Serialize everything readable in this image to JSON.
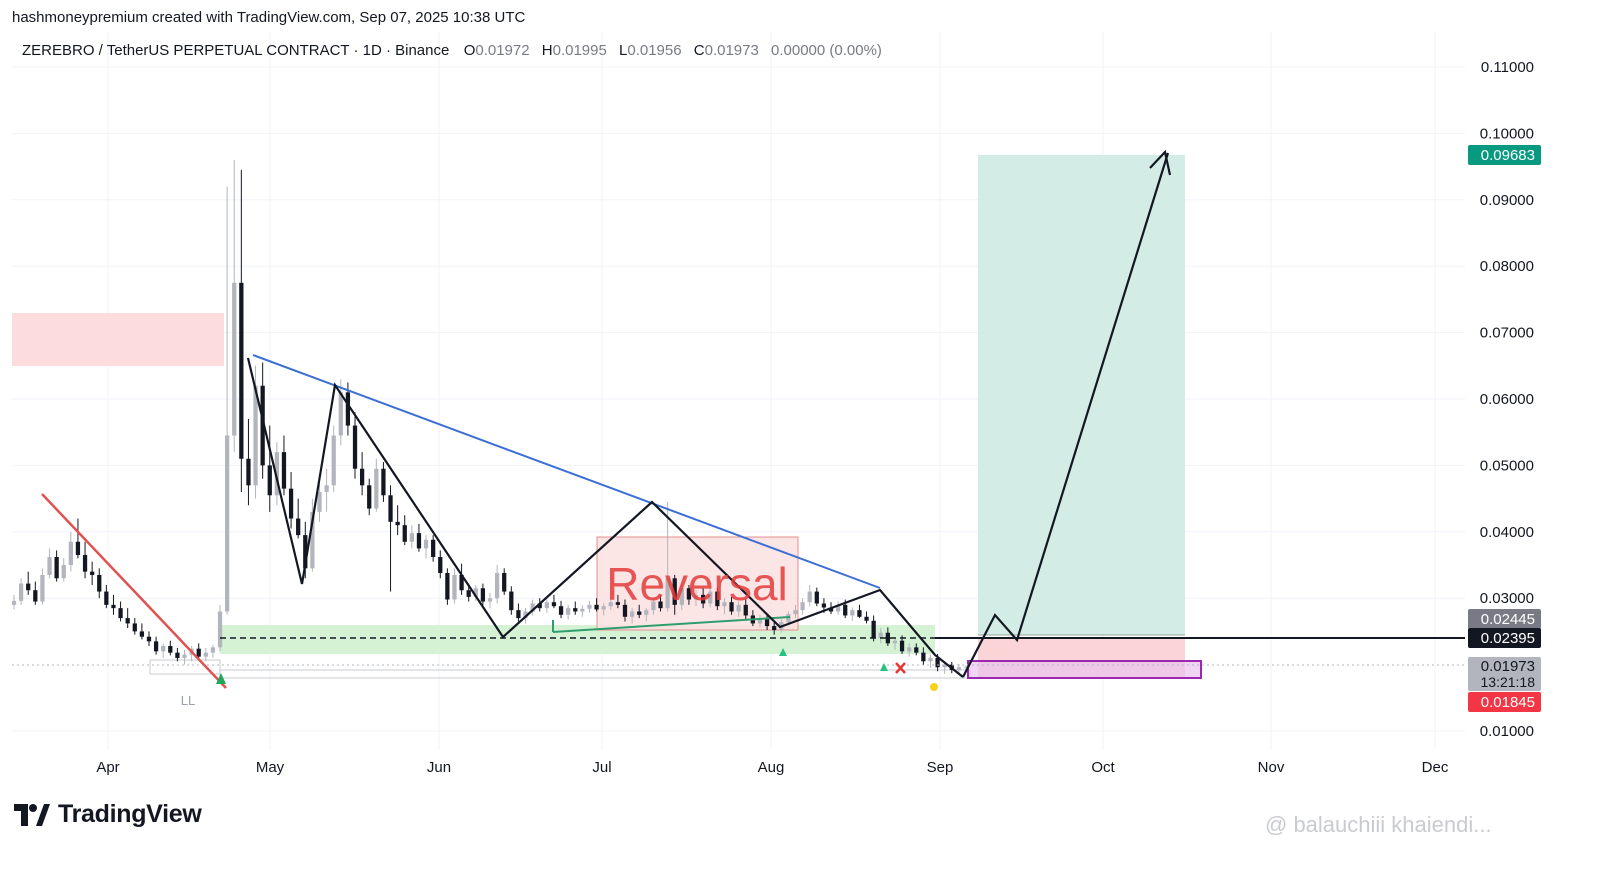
{
  "header": {
    "created_line": "hashmoneypremium created with TradingView.com, Sep 07, 2025 10:38 UTC",
    "symbol": "ZEREBRO / TetherUS PERPETUAL CONTRACT · 1D · Binance",
    "o_label": "O",
    "o_value": "0.01972",
    "h_label": "H",
    "h_value": "0.01995",
    "l_label": "L",
    "l_value": "0.01956",
    "c_label": "C",
    "c_value": "0.01973",
    "change": "0.00000 (0.00%)"
  },
  "branding": {
    "logo_text": "TradingView",
    "watermark": "@ balauchiii khaiendi..."
  },
  "colors": {
    "up": "#b2b5be",
    "down": "#131722",
    "blue_line": "#3b6fd4",
    "red_line": "#e05252",
    "target_zone": "#d3ede6",
    "stop_zone": "#fad4d6",
    "supply_zone": "#fcdcdc",
    "demand_zone": "#d6f2d4",
    "purple_box": "#9c27b0",
    "target_badge": "#089981",
    "red_badge": "#f23645"
  },
  "chart_data": {
    "type": "candlestick",
    "timeframe": "1D",
    "x_labels": [
      "Apr",
      "May",
      "Jun",
      "Jul",
      "Aug",
      "Sep",
      "Oct",
      "Nov",
      "Dec"
    ],
    "y_ticks": [
      "0.11000",
      "0.10000",
      "0.09000",
      "0.08000",
      "0.07000",
      "0.06000",
      "0.05000",
      "0.04000",
      "0.03000",
      "0.01000"
    ],
    "ylim": [
      0.006,
      0.116
    ],
    "price_badges": [
      {
        "label": "0.09683",
        "value": 0.09683,
        "kind": "target"
      },
      {
        "label": "0.02445",
        "value": 0.02445,
        "kind": "entry"
      },
      {
        "label": "0.02395",
        "value": 0.02395,
        "kind": "level"
      },
      {
        "label": "0.01973",
        "value": 0.01973,
        "kind": "last",
        "sub": "13:21:18"
      },
      {
        "label": "0.01845",
        "value": 0.01845,
        "kind": "stop"
      }
    ],
    "annotations": [
      {
        "text": "Reversal",
        "kind": "box-label"
      },
      {
        "text": "LL",
        "kind": "marker"
      }
    ],
    "candles_ohlc": [
      [
        0.029,
        0.0305,
        0.0283,
        0.0296
      ],
      [
        0.0296,
        0.033,
        0.029,
        0.0322
      ],
      [
        0.0322,
        0.034,
        0.0305,
        0.0312
      ],
      [
        0.0312,
        0.0325,
        0.029,
        0.0295
      ],
      [
        0.0295,
        0.0345,
        0.029,
        0.0335
      ],
      [
        0.0335,
        0.0375,
        0.033,
        0.0362
      ],
      [
        0.0362,
        0.0372,
        0.0325,
        0.033
      ],
      [
        0.033,
        0.036,
        0.0325,
        0.035
      ],
      [
        0.035,
        0.04,
        0.034,
        0.0385
      ],
      [
        0.0385,
        0.042,
        0.036,
        0.0365
      ],
      [
        0.0365,
        0.0385,
        0.033,
        0.034
      ],
      [
        0.034,
        0.0355,
        0.032,
        0.0335
      ],
      [
        0.0335,
        0.0345,
        0.03,
        0.031
      ],
      [
        0.031,
        0.032,
        0.0285,
        0.029
      ],
      [
        0.029,
        0.0305,
        0.0275,
        0.0285
      ],
      [
        0.0285,
        0.0295,
        0.0265,
        0.027
      ],
      [
        0.027,
        0.0285,
        0.0255,
        0.0262
      ],
      [
        0.0262,
        0.027,
        0.0245,
        0.025
      ],
      [
        0.025,
        0.0262,
        0.0238,
        0.0242
      ],
      [
        0.0242,
        0.025,
        0.0228,
        0.0235
      ],
      [
        0.0235,
        0.0242,
        0.0215,
        0.022
      ],
      [
        0.022,
        0.0232,
        0.021,
        0.0228
      ],
      [
        0.0228,
        0.0236,
        0.0214,
        0.0218
      ],
      [
        0.0218,
        0.0225,
        0.0205,
        0.021
      ],
      [
        0.021,
        0.0222,
        0.02,
        0.0215
      ],
      [
        0.0215,
        0.0228,
        0.0205,
        0.0224
      ],
      [
        0.0224,
        0.0232,
        0.021,
        0.0212
      ],
      [
        0.0212,
        0.0225,
        0.0205,
        0.0218
      ],
      [
        0.0218,
        0.023,
        0.021,
        0.0226
      ],
      [
        0.0226,
        0.029,
        0.022,
        0.028
      ],
      [
        0.028,
        0.092,
        0.0275,
        0.0545
      ],
      [
        0.0545,
        0.096,
        0.052,
        0.0775
      ],
      [
        0.0775,
        0.0945,
        0.046,
        0.051
      ],
      [
        0.051,
        0.057,
        0.044,
        0.047
      ],
      [
        0.047,
        0.065,
        0.045,
        0.062
      ],
      [
        0.062,
        0.0655,
        0.048,
        0.05
      ],
      [
        0.05,
        0.056,
        0.043,
        0.0455
      ],
      [
        0.0455,
        0.0535,
        0.044,
        0.052
      ],
      [
        0.052,
        0.0545,
        0.0455,
        0.0465
      ],
      [
        0.0465,
        0.049,
        0.0405,
        0.042
      ],
      [
        0.042,
        0.045,
        0.039,
        0.0395
      ],
      [
        0.0395,
        0.0415,
        0.033,
        0.0345
      ],
      [
        0.0345,
        0.045,
        0.034,
        0.043
      ],
      [
        0.043,
        0.048,
        0.0415,
        0.046
      ],
      [
        0.046,
        0.0495,
        0.043,
        0.047
      ],
      [
        0.047,
        0.056,
        0.046,
        0.0545
      ],
      [
        0.0545,
        0.063,
        0.053,
        0.061
      ],
      [
        0.061,
        0.0625,
        0.0545,
        0.056
      ],
      [
        0.056,
        0.058,
        0.048,
        0.0495
      ],
      [
        0.0495,
        0.052,
        0.0455,
        0.047
      ],
      [
        0.047,
        0.048,
        0.0425,
        0.0435
      ],
      [
        0.0435,
        0.051,
        0.043,
        0.0495
      ],
      [
        0.0495,
        0.0505,
        0.0445,
        0.0455
      ],
      [
        0.0455,
        0.047,
        0.031,
        0.0415
      ],
      [
        0.0415,
        0.044,
        0.0395,
        0.041
      ],
      [
        0.041,
        0.0425,
        0.038,
        0.0385
      ],
      [
        0.0385,
        0.041,
        0.0375,
        0.0398
      ],
      [
        0.0398,
        0.0412,
        0.037,
        0.0375
      ],
      [
        0.0375,
        0.0395,
        0.036,
        0.0388
      ],
      [
        0.0388,
        0.0395,
        0.0355,
        0.0362
      ],
      [
        0.0362,
        0.0372,
        0.033,
        0.0338
      ],
      [
        0.0338,
        0.0345,
        0.029,
        0.0298
      ],
      [
        0.0298,
        0.0345,
        0.0292,
        0.0335
      ],
      [
        0.0335,
        0.0352,
        0.0305,
        0.0312
      ],
      [
        0.0312,
        0.0322,
        0.0295,
        0.0302
      ],
      [
        0.0302,
        0.032,
        0.0296,
        0.0315
      ],
      [
        0.0315,
        0.0322,
        0.029,
        0.0295
      ],
      [
        0.0295,
        0.0308,
        0.0285,
        0.03
      ],
      [
        0.03,
        0.035,
        0.0292,
        0.0338
      ],
      [
        0.0338,
        0.0345,
        0.0305,
        0.031
      ],
      [
        0.031,
        0.0318,
        0.0275,
        0.0282
      ],
      [
        0.0282,
        0.0292,
        0.0265,
        0.027
      ],
      [
        0.027,
        0.0285,
        0.0262,
        0.028
      ],
      [
        0.028,
        0.0298,
        0.0274,
        0.0292
      ],
      [
        0.0292,
        0.03,
        0.028,
        0.0285
      ],
      [
        0.0285,
        0.0298,
        0.0278,
        0.0294
      ],
      [
        0.0294,
        0.0305,
        0.0285,
        0.0288
      ],
      [
        0.0288,
        0.0296,
        0.027,
        0.0275
      ],
      [
        0.0275,
        0.029,
        0.0268,
        0.0285
      ],
      [
        0.0285,
        0.0295,
        0.0275,
        0.028
      ],
      [
        0.028,
        0.029,
        0.0272,
        0.0284
      ],
      [
        0.0284,
        0.0296,
        0.0278,
        0.029
      ],
      [
        0.029,
        0.03,
        0.028,
        0.0283
      ],
      [
        0.0283,
        0.0292,
        0.0274,
        0.0288
      ],
      [
        0.0288,
        0.0298,
        0.0282,
        0.0294
      ],
      [
        0.0294,
        0.0305,
        0.0285,
        0.029
      ],
      [
        0.029,
        0.0298,
        0.0265,
        0.0272
      ],
      [
        0.0272,
        0.0285,
        0.0262,
        0.028
      ],
      [
        0.028,
        0.029,
        0.027,
        0.0275
      ],
      [
        0.0275,
        0.0285,
        0.0265,
        0.0282
      ],
      [
        0.0282,
        0.03,
        0.0275,
        0.0295
      ],
      [
        0.0295,
        0.0305,
        0.028,
        0.0285
      ],
      [
        0.0285,
        0.0445,
        0.028,
        0.033
      ],
      [
        0.033,
        0.0335,
        0.0275,
        0.029
      ],
      [
        0.029,
        0.0322,
        0.0282,
        0.0315
      ],
      [
        0.0315,
        0.032,
        0.029,
        0.0298
      ],
      [
        0.0298,
        0.0312,
        0.0288,
        0.0305
      ],
      [
        0.0305,
        0.0315,
        0.0285,
        0.0292
      ],
      [
        0.0292,
        0.0318,
        0.0286,
        0.031
      ],
      [
        0.031,
        0.0316,
        0.0282,
        0.0288
      ],
      [
        0.0288,
        0.03,
        0.0276,
        0.0294
      ],
      [
        0.0294,
        0.0302,
        0.0275,
        0.028
      ],
      [
        0.028,
        0.0295,
        0.0272,
        0.029
      ],
      [
        0.029,
        0.0298,
        0.0268,
        0.0274
      ],
      [
        0.0274,
        0.0282,
        0.0258,
        0.0262
      ],
      [
        0.0262,
        0.0275,
        0.0256,
        0.027
      ],
      [
        0.027,
        0.0276,
        0.0252,
        0.0258
      ],
      [
        0.0258,
        0.0265,
        0.0245,
        0.0252
      ],
      [
        0.0252,
        0.0268,
        0.0248,
        0.0264
      ],
      [
        0.0264,
        0.028,
        0.026,
        0.0276
      ],
      [
        0.0276,
        0.029,
        0.027,
        0.0282
      ],
      [
        0.0282,
        0.03,
        0.0275,
        0.0294
      ],
      [
        0.0294,
        0.032,
        0.0288,
        0.031
      ],
      [
        0.031,
        0.0316,
        0.0288,
        0.0292
      ],
      [
        0.0292,
        0.03,
        0.0278,
        0.0286
      ],
      [
        0.0286,
        0.0294,
        0.0276,
        0.028
      ],
      [
        0.028,
        0.0295,
        0.0275,
        0.029
      ],
      [
        0.029,
        0.0298,
        0.027,
        0.0274
      ],
      [
        0.0274,
        0.0286,
        0.0266,
        0.0282
      ],
      [
        0.0282,
        0.029,
        0.027,
        0.0272
      ],
      [
        0.0272,
        0.028,
        0.0262,
        0.0266
      ],
      [
        0.0266,
        0.0274,
        0.0235,
        0.024
      ],
      [
        0.024,
        0.0255,
        0.0232,
        0.0248
      ],
      [
        0.0248,
        0.0256,
        0.0228,
        0.0232
      ],
      [
        0.0232,
        0.024,
        0.0222,
        0.0236
      ],
      [
        0.0236,
        0.0244,
        0.0216,
        0.022
      ],
      [
        0.022,
        0.0232,
        0.0212,
        0.0226
      ],
      [
        0.0226,
        0.0232,
        0.0214,
        0.0218
      ],
      [
        0.0218,
        0.0226,
        0.02,
        0.0205
      ],
      [
        0.0205,
        0.0215,
        0.0195,
        0.021
      ],
      [
        0.021,
        0.0216,
        0.019,
        0.0196
      ],
      [
        0.0196,
        0.0205,
        0.0186,
        0.02
      ],
      [
        0.02,
        0.0204,
        0.0187,
        0.0192
      ],
      [
        0.0192,
        0.0201,
        0.0188,
        0.0196
      ],
      [
        0.0196,
        0.0199,
        0.019,
        0.0197
      ]
    ]
  }
}
